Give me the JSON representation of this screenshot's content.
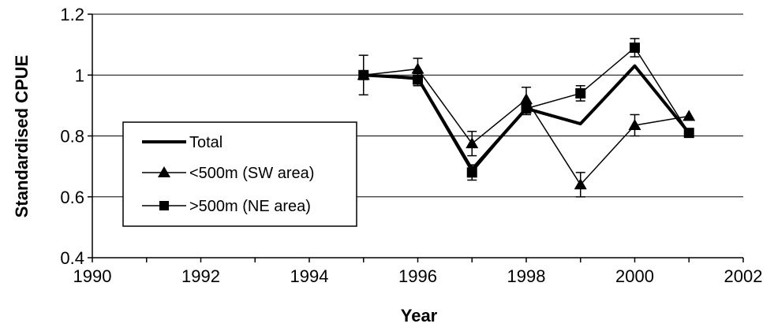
{
  "chart_data": {
    "type": "line",
    "xlabel": "Year",
    "ylabel": "Standardised CPUE",
    "xlim": [
      1990,
      2002
    ],
    "ylim": [
      0.4,
      1.2
    ],
    "x_ticks": [
      1990,
      1992,
      1994,
      1996,
      1998,
      2000,
      2002
    ],
    "y_ticks": [
      0.4,
      0.6,
      0.8,
      1,
      1.2
    ],
    "y_tick_labels": [
      "0.4",
      "0.6",
      "0.8",
      "1",
      "1.2"
    ],
    "grid": "horizontal",
    "legend_position": "left",
    "series": [
      {
        "name": "Total",
        "marker": "none",
        "x": [
          1995,
          1996,
          1997,
          1998,
          1999,
          2000,
          2001
        ],
        "y": [
          1.0,
          0.99,
          0.69,
          0.89,
          0.84,
          1.03,
          0.81
        ]
      },
      {
        "name": "<500m (SW area)",
        "marker": "triangle",
        "x": [
          1995,
          1996,
          1997,
          1998,
          1999,
          2000,
          2001
        ],
        "y": [
          1.0,
          1.02,
          0.775,
          0.92,
          0.64,
          0.835,
          0.865
        ],
        "err": [
          0,
          0.035,
          0.04,
          0.04,
          0.04,
          0.035,
          0
        ]
      },
      {
        "name": ">500m (NE area)",
        "marker": "square",
        "x": [
          1995,
          1996,
          1997,
          1998,
          1999,
          2000,
          2001
        ],
        "y": [
          1.0,
          0.985,
          0.68,
          0.89,
          0.94,
          1.09,
          0.81
        ],
        "err": [
          0.065,
          0.02,
          0.025,
          0.02,
          0.025,
          0.03,
          0
        ]
      }
    ]
  }
}
